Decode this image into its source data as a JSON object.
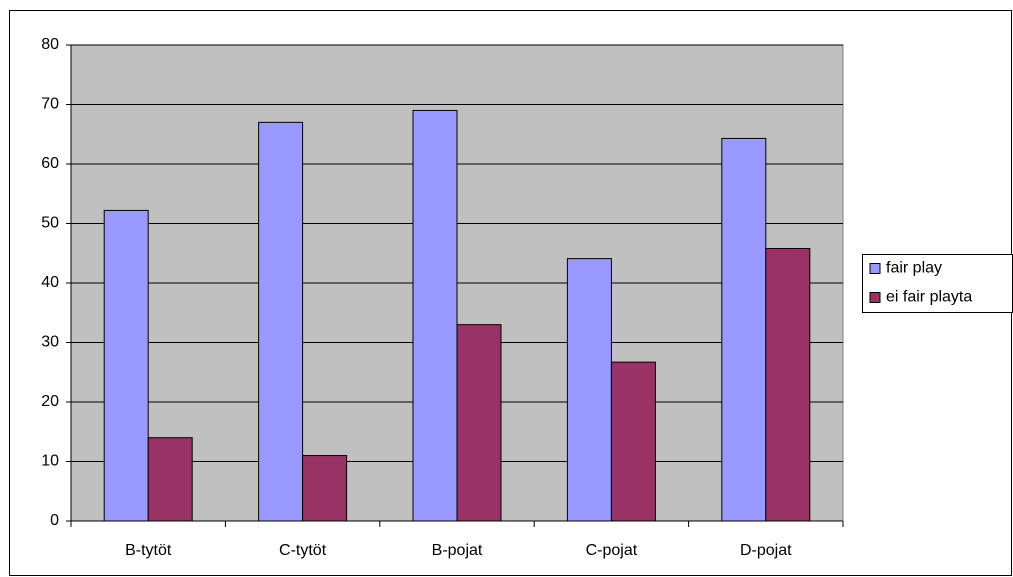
{
  "chart_data": {
    "type": "bar",
    "categories": [
      "B-tytöt",
      "C-tytöt",
      "B-pojat",
      "C-pojat",
      "D-pojat"
    ],
    "series": [
      {
        "name": "fair play",
        "color": "#9999ff",
        "values": [
          52.2,
          67,
          69,
          44.1,
          64.3
        ]
      },
      {
        "name": "ei fair playta",
        "color": "#993366",
        "values": [
          14,
          11,
          33,
          26.7,
          45.8
        ]
      }
    ],
    "ylim": [
      0,
      80
    ],
    "yticks": [
      0,
      10,
      20,
      30,
      40,
      50,
      60,
      70,
      80
    ],
    "grid": true,
    "legend": "right"
  }
}
